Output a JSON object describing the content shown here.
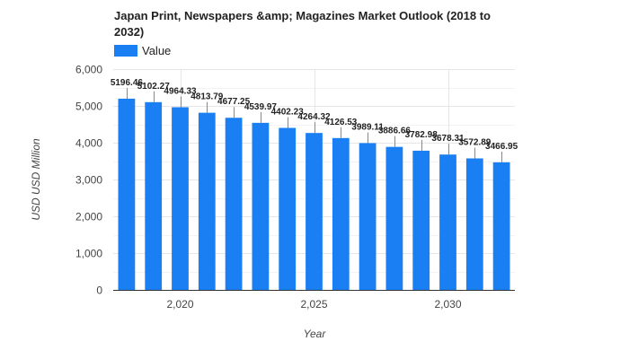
{
  "chart_data": {
    "type": "bar",
    "title_lines": [
      "Japan Print, Newspapers &amp; Magazines Market Outlook (2018 to",
      "2032)"
    ],
    "legend": {
      "label": "Value",
      "position": "top-left"
    },
    "x": [
      2018,
      2019,
      2020,
      2021,
      2022,
      2023,
      2024,
      2025,
      2026,
      2027,
      2028,
      2029,
      2030,
      2031,
      2032
    ],
    "data_labels": [
      "5196.46",
      "5102.27",
      "4964.33",
      "4813.79",
      "4677.25",
      "4539.97",
      "4402.23",
      "4264.32",
      "4126.53",
      "3989.11",
      "3886.66",
      "3782.98",
      "3678.31",
      "3572.89",
      "3466.95"
    ],
    "series": [
      {
        "name": "Value",
        "color": "#1a7ff2",
        "values": [
          5196.46,
          5102.27,
          4964.33,
          4813.79,
          4677.25,
          4539.97,
          4402.23,
          4264.32,
          4126.53,
          3989.11,
          3886.66,
          3782.98,
          3678.31,
          3572.89,
          3466.95
        ]
      }
    ],
    "xlabel": "Year",
    "ylabel": "USD USD Million",
    "ylim": [
      0,
      6000
    ],
    "y_ticks": [
      0,
      1000,
      2000,
      3000,
      4000,
      5000,
      6000
    ],
    "y_tick_labels": [
      "0",
      "1,000",
      "2,000",
      "3,000",
      "4,000",
      "5,000",
      "6,000"
    ],
    "x_ticks": [
      2020,
      2025,
      2030
    ],
    "x_tick_labels": [
      "2,020",
      "2,025",
      "2,030"
    ],
    "grid": true
  }
}
